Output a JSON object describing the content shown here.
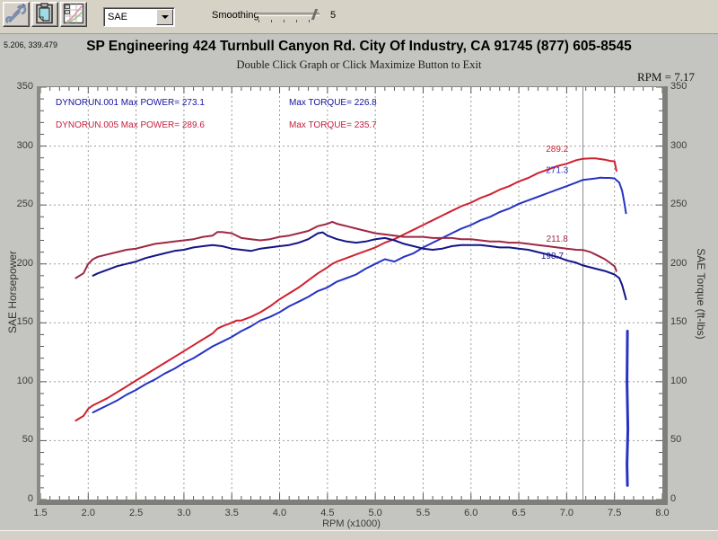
{
  "toolbar": {
    "buttons": [
      {
        "name": "tools-icon"
      },
      {
        "name": "clipboard-icon"
      },
      {
        "name": "graph-maximize-icon"
      }
    ],
    "correction_dropdown": {
      "value": "SAE"
    },
    "smoothing_label": "Smoothing",
    "smoothing_value": "5"
  },
  "header": {
    "cursor_position": "5.206, 339.479",
    "title": "SP Engineering 424 Turnbull Canyon Rd. City Of Industry, CA 91745 (877) 605-8545",
    "subtitle": "Double Click Graph or Click Maximize Button to Exit",
    "rpm_readout": "RPM = 7.17"
  },
  "chart_data": {
    "type": "line",
    "xlabel": "RPM (x1000)",
    "ylabel_left": "SAE Horsepower",
    "ylabel_right": "SAE Torque (ft-lbs)",
    "xlim": [
      1.5,
      8.0
    ],
    "ylim": [
      0,
      350
    ],
    "x_ticks": [
      1.5,
      2.0,
      2.5,
      3.0,
      3.5,
      4.0,
      4.5,
      5.0,
      5.5,
      6.0,
      6.5,
      7.0,
      7.5,
      8.0
    ],
    "y_ticks": [
      0,
      50,
      100,
      150,
      200,
      250,
      300,
      350
    ],
    "grid": true,
    "legend_position": "top-left-inside",
    "cursor_rpm": 7.17,
    "legend_rows": [
      {
        "file": "DYNORUN.001",
        "power_label": "Max POWER= 273.1",
        "torque_label": "Max TORQUE= 226.8",
        "color": "#1212a0"
      },
      {
        "file": "DYNORUN.005",
        "power_label": "Max POWER= 289.6",
        "torque_label": "Max TORQUE= 235.7",
        "color": "#c32040"
      }
    ],
    "annotations": [
      {
        "text": "289.2",
        "rpm": 6.9,
        "value": 295,
        "color": "#cf2130"
      },
      {
        "text": "271.3",
        "rpm": 6.9,
        "value": 277,
        "color": "#2633c4"
      },
      {
        "text": "211.8",
        "rpm": 6.9,
        "value": 219,
        "color": "#9e2743"
      },
      {
        "text": "198.7",
        "rpm": 6.85,
        "value": 204.5,
        "color": "#141489"
      }
    ],
    "series": [
      {
        "name": "dynorun-005-power",
        "color": "#cf2130",
        "width": 2,
        "points": [
          [
            1.87,
            67
          ],
          [
            1.95,
            71
          ],
          [
            2.0,
            77
          ],
          [
            2.05,
            80
          ],
          [
            2.1,
            82
          ],
          [
            2.2,
            86
          ],
          [
            2.3,
            91
          ],
          [
            2.4,
            96
          ],
          [
            2.5,
            101
          ],
          [
            2.6,
            106
          ],
          [
            2.7,
            111
          ],
          [
            2.8,
            116
          ],
          [
            2.9,
            121
          ],
          [
            3.0,
            126
          ],
          [
            3.1,
            131
          ],
          [
            3.2,
            136
          ],
          [
            3.3,
            141
          ],
          [
            3.35,
            145
          ],
          [
            3.4,
            147
          ],
          [
            3.5,
            150
          ],
          [
            3.55,
            152
          ],
          [
            3.6,
            152
          ],
          [
            3.7,
            155
          ],
          [
            3.8,
            159
          ],
          [
            3.9,
            164
          ],
          [
            4.0,
            170
          ],
          [
            4.1,
            175
          ],
          [
            4.2,
            180
          ],
          [
            4.3,
            186
          ],
          [
            4.4,
            192
          ],
          [
            4.5,
            197
          ],
          [
            4.55,
            200
          ],
          [
            4.6,
            202
          ],
          [
            4.7,
            205
          ],
          [
            4.8,
            208
          ],
          [
            4.9,
            211
          ],
          [
            5.0,
            214
          ],
          [
            5.1,
            218
          ],
          [
            5.2,
            221
          ],
          [
            5.3,
            225
          ],
          [
            5.4,
            229
          ],
          [
            5.5,
            233
          ],
          [
            5.6,
            237
          ],
          [
            5.7,
            241
          ],
          [
            5.8,
            245
          ],
          [
            5.9,
            249
          ],
          [
            6.0,
            252
          ],
          [
            6.1,
            256
          ],
          [
            6.2,
            259
          ],
          [
            6.3,
            263
          ],
          [
            6.4,
            266
          ],
          [
            6.5,
            270
          ],
          [
            6.6,
            273
          ],
          [
            6.7,
            277
          ],
          [
            6.8,
            280
          ],
          [
            6.9,
            283
          ],
          [
            7.0,
            285
          ],
          [
            7.1,
            288
          ],
          [
            7.17,
            289.2
          ],
          [
            7.25,
            289.5
          ],
          [
            7.3,
            289.6
          ],
          [
            7.35,
            289
          ],
          [
            7.4,
            288.5
          ],
          [
            7.45,
            287.5
          ],
          [
            7.5,
            287
          ],
          [
            7.51,
            283
          ],
          [
            7.52,
            279
          ]
        ]
      },
      {
        "name": "dynorun-001-power",
        "color": "#2633c4",
        "width": 2,
        "points": [
          [
            2.05,
            74
          ],
          [
            2.1,
            76
          ],
          [
            2.2,
            80
          ],
          [
            2.3,
            84
          ],
          [
            2.4,
            89
          ],
          [
            2.5,
            93
          ],
          [
            2.6,
            98
          ],
          [
            2.7,
            102
          ],
          [
            2.8,
            107
          ],
          [
            2.9,
            111
          ],
          [
            3.0,
            116
          ],
          [
            3.1,
            120
          ],
          [
            3.2,
            125
          ],
          [
            3.3,
            130
          ],
          [
            3.4,
            134
          ],
          [
            3.5,
            138
          ],
          [
            3.6,
            143
          ],
          [
            3.7,
            147
          ],
          [
            3.8,
            152
          ],
          [
            3.9,
            155
          ],
          [
            4.0,
            159
          ],
          [
            4.1,
            164
          ],
          [
            4.2,
            168
          ],
          [
            4.3,
            172
          ],
          [
            4.4,
            177
          ],
          [
            4.5,
            180
          ],
          [
            4.6,
            185
          ],
          [
            4.7,
            188
          ],
          [
            4.8,
            191
          ],
          [
            4.9,
            196
          ],
          [
            5.0,
            200
          ],
          [
            5.1,
            204
          ],
          [
            5.15,
            203
          ],
          [
            5.2,
            202
          ],
          [
            5.3,
            206
          ],
          [
            5.4,
            209
          ],
          [
            5.5,
            214
          ],
          [
            5.6,
            218
          ],
          [
            5.7,
            222
          ],
          [
            5.8,
            226
          ],
          [
            5.9,
            230
          ],
          [
            6.0,
            233
          ],
          [
            6.1,
            237
          ],
          [
            6.2,
            240
          ],
          [
            6.3,
            244
          ],
          [
            6.4,
            247
          ],
          [
            6.5,
            251
          ],
          [
            6.6,
            254
          ],
          [
            6.7,
            257
          ],
          [
            6.8,
            260
          ],
          [
            6.9,
            263
          ],
          [
            7.0,
            266
          ],
          [
            7.1,
            269
          ],
          [
            7.17,
            271.3
          ],
          [
            7.25,
            272
          ],
          [
            7.3,
            272.5
          ],
          [
            7.35,
            273.1
          ],
          [
            7.4,
            273
          ],
          [
            7.45,
            273
          ],
          [
            7.5,
            272.5
          ],
          [
            7.55,
            269
          ],
          [
            7.58,
            262
          ],
          [
            7.6,
            253
          ],
          [
            7.62,
            243
          ]
        ]
      },
      {
        "name": "dynorun-005-torque",
        "color": "#9e2743",
        "width": 2,
        "points": [
          [
            1.87,
            188
          ],
          [
            1.95,
            192
          ],
          [
            2.0,
            200
          ],
          [
            2.05,
            204
          ],
          [
            2.1,
            206
          ],
          [
            2.2,
            208
          ],
          [
            2.3,
            210
          ],
          [
            2.4,
            212
          ],
          [
            2.5,
            213
          ],
          [
            2.6,
            215
          ],
          [
            2.7,
            217
          ],
          [
            2.8,
            218
          ],
          [
            2.9,
            219
          ],
          [
            3.0,
            220
          ],
          [
            3.1,
            221
          ],
          [
            3.2,
            223
          ],
          [
            3.3,
            224
          ],
          [
            3.35,
            227
          ],
          [
            3.4,
            227
          ],
          [
            3.5,
            226
          ],
          [
            3.6,
            222
          ],
          [
            3.7,
            221
          ],
          [
            3.8,
            220
          ],
          [
            3.9,
            221
          ],
          [
            4.0,
            223
          ],
          [
            4.1,
            224
          ],
          [
            4.2,
            226
          ],
          [
            4.3,
            228
          ],
          [
            4.4,
            232
          ],
          [
            4.5,
            234
          ],
          [
            4.55,
            235.7
          ],
          [
            4.6,
            234
          ],
          [
            4.7,
            232
          ],
          [
            4.8,
            230
          ],
          [
            4.9,
            228
          ],
          [
            5.0,
            226
          ],
          [
            5.1,
            225
          ],
          [
            5.2,
            224
          ],
          [
            5.3,
            223
          ],
          [
            5.4,
            223
          ],
          [
            5.5,
            223
          ],
          [
            5.6,
            222
          ],
          [
            5.7,
            222
          ],
          [
            5.8,
            222
          ],
          [
            5.9,
            221
          ],
          [
            6.0,
            221
          ],
          [
            6.1,
            220
          ],
          [
            6.2,
            219
          ],
          [
            6.3,
            219
          ],
          [
            6.4,
            218
          ],
          [
            6.5,
            218
          ],
          [
            6.6,
            217
          ],
          [
            6.7,
            216
          ],
          [
            6.8,
            215
          ],
          [
            6.9,
            214
          ],
          [
            7.0,
            213
          ],
          [
            7.1,
            212
          ],
          [
            7.17,
            211.8
          ],
          [
            7.25,
            210
          ],
          [
            7.3,
            208
          ],
          [
            7.35,
            206
          ],
          [
            7.4,
            204
          ],
          [
            7.45,
            201
          ],
          [
            7.5,
            198
          ],
          [
            7.52,
            194
          ]
        ]
      },
      {
        "name": "dynorun-001-torque",
        "color": "#141489",
        "width": 2,
        "points": [
          [
            2.05,
            190
          ],
          [
            2.1,
            192
          ],
          [
            2.2,
            195
          ],
          [
            2.3,
            198
          ],
          [
            2.4,
            200
          ],
          [
            2.5,
            202
          ],
          [
            2.6,
            205
          ],
          [
            2.7,
            207
          ],
          [
            2.8,
            209
          ],
          [
            2.9,
            211
          ],
          [
            3.0,
            212
          ],
          [
            3.1,
            214
          ],
          [
            3.2,
            215
          ],
          [
            3.3,
            216
          ],
          [
            3.4,
            215
          ],
          [
            3.5,
            213
          ],
          [
            3.6,
            212
          ],
          [
            3.7,
            211
          ],
          [
            3.8,
            213
          ],
          [
            3.9,
            214
          ],
          [
            4.0,
            215
          ],
          [
            4.1,
            216
          ],
          [
            4.2,
            218
          ],
          [
            4.3,
            221
          ],
          [
            4.4,
            226
          ],
          [
            4.45,
            226.8
          ],
          [
            4.5,
            224
          ],
          [
            4.6,
            221
          ],
          [
            4.7,
            219
          ],
          [
            4.8,
            218
          ],
          [
            4.9,
            219
          ],
          [
            5.0,
            221
          ],
          [
            5.1,
            222
          ],
          [
            5.2,
            220
          ],
          [
            5.3,
            217
          ],
          [
            5.4,
            215
          ],
          [
            5.5,
            213
          ],
          [
            5.6,
            212
          ],
          [
            5.7,
            213
          ],
          [
            5.8,
            215
          ],
          [
            5.9,
            216
          ],
          [
            6.0,
            216
          ],
          [
            6.1,
            216
          ],
          [
            6.2,
            215
          ],
          [
            6.3,
            214
          ],
          [
            6.4,
            214
          ],
          [
            6.5,
            213
          ],
          [
            6.6,
            212
          ],
          [
            6.7,
            210
          ],
          [
            6.8,
            208
          ],
          [
            6.9,
            206
          ],
          [
            7.0,
            203
          ],
          [
            7.1,
            201
          ],
          [
            7.17,
            198.7
          ],
          [
            7.3,
            196
          ],
          [
            7.4,
            194
          ],
          [
            7.5,
            191
          ],
          [
            7.55,
            188
          ],
          [
            7.58,
            182
          ],
          [
            7.6,
            176
          ],
          [
            7.62,
            170
          ]
        ]
      },
      {
        "name": "data-spike",
        "color": "#2633c4",
        "width": 3,
        "points": [
          [
            7.635,
            143
          ],
          [
            7.63,
            100
          ],
          [
            7.64,
            60
          ],
          [
            7.63,
            30
          ],
          [
            7.635,
            12
          ]
        ]
      }
    ]
  }
}
